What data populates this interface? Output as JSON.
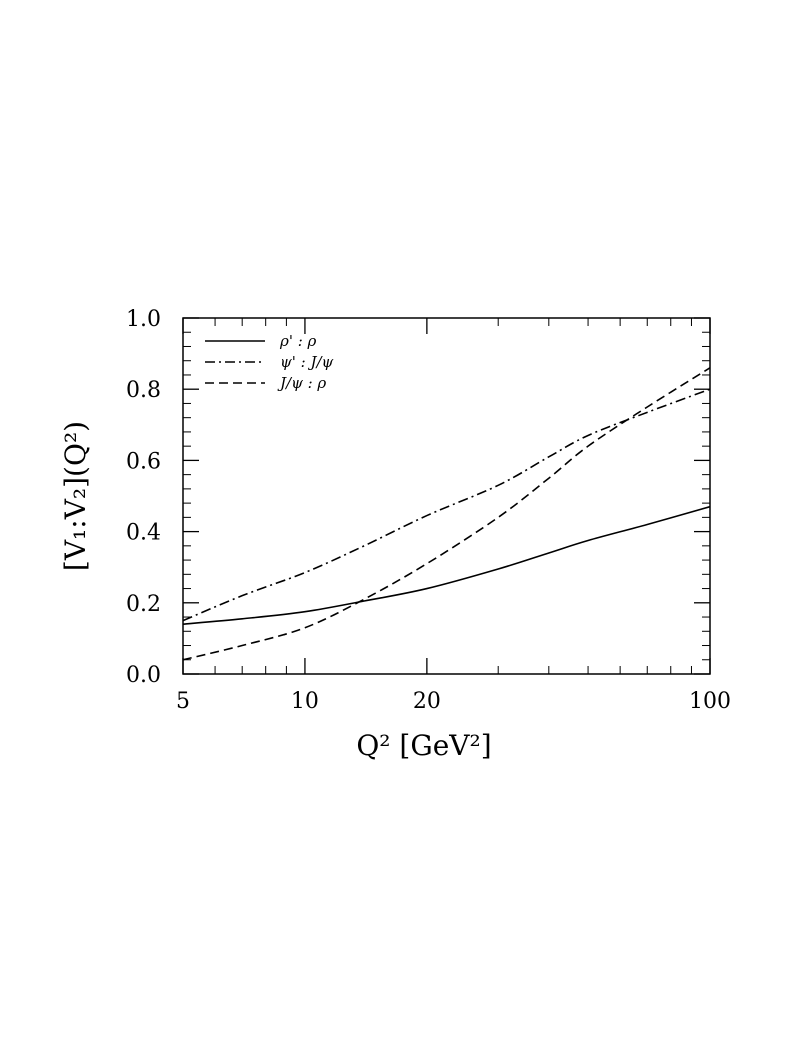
{
  "chart_data": {
    "type": "line",
    "xscale": "log",
    "xlim": [
      5,
      100
    ],
    "ylim": [
      0.0,
      1.0
    ],
    "xlabel": "Q² [GeV²]",
    "ylabel": "[V₁:V₂](Q²)",
    "x_ticks": [
      5,
      10,
      20,
      100
    ],
    "x_tick_labels": [
      "5",
      "10",
      "20",
      "100"
    ],
    "y_ticks": [
      0.0,
      0.2,
      0.4,
      0.6,
      0.8,
      1.0
    ],
    "y_tick_labels": [
      "0.0",
      "0.2",
      "0.4",
      "0.6",
      "0.8",
      "1.0"
    ],
    "legend_position": "top-left",
    "grid": false,
    "series": [
      {
        "name": "ρ' : ρ",
        "style": "solid",
        "x": [
          5,
          7,
          10,
          14,
          20,
          30,
          40,
          50,
          70,
          100
        ],
        "y": [
          0.14,
          0.155,
          0.175,
          0.205,
          0.24,
          0.295,
          0.34,
          0.375,
          0.42,
          0.47
        ]
      },
      {
        "name": "ψ' : J/ψ",
        "style": "dashdot",
        "x": [
          5,
          7,
          10,
          14,
          20,
          30,
          40,
          50,
          70,
          100
        ],
        "y": [
          0.15,
          0.22,
          0.285,
          0.36,
          0.445,
          0.53,
          0.61,
          0.67,
          0.735,
          0.8
        ]
      },
      {
        "name": "J/ψ : ρ",
        "style": "dashed",
        "x": [
          5,
          7,
          10,
          14,
          20,
          30,
          40,
          50,
          70,
          100
        ],
        "y": [
          0.04,
          0.08,
          0.13,
          0.21,
          0.31,
          0.44,
          0.55,
          0.64,
          0.75,
          0.86
        ]
      }
    ]
  }
}
